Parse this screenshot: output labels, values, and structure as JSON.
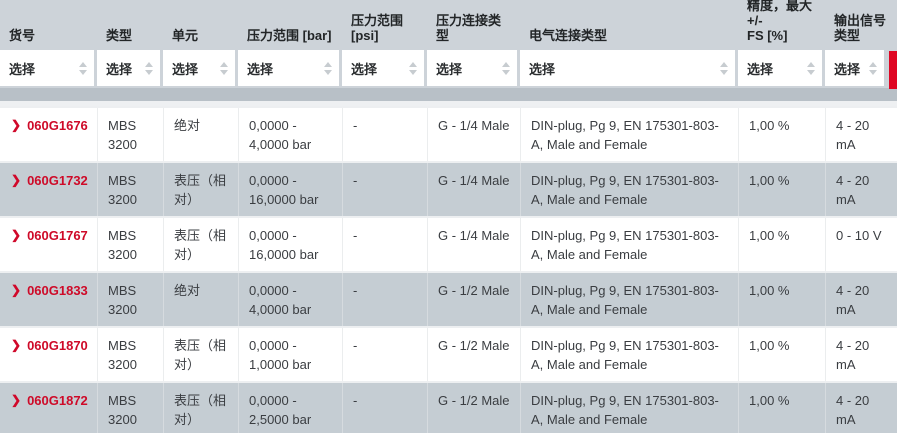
{
  "header": {
    "filter_placeholder": "选择",
    "columns": [
      {
        "id": "item",
        "label": "货号"
      },
      {
        "id": "type",
        "label": "类型"
      },
      {
        "id": "unit",
        "label": "单元"
      },
      {
        "id": "range_bar",
        "label": "压力范围 [bar]"
      },
      {
        "id": "range_psi",
        "label": "压力范围\n[psi]"
      },
      {
        "id": "pressure_connection",
        "label": "压力连接类型"
      },
      {
        "id": "electrical_connection",
        "label": "电气连接类型"
      },
      {
        "id": "accuracy",
        "label": "精度，最大 +/-\nFS [%]"
      },
      {
        "id": "output_signal",
        "label": "输出信号\n类型"
      }
    ]
  },
  "rows": [
    {
      "item": "060G1676",
      "type": "MBS 3200",
      "unit": "绝对",
      "range_bar": "0,0000 - 4,0000 bar",
      "range_psi": "-",
      "pressure_connection": "G - 1/4 Male",
      "electrical_connection": "DIN-plug, Pg 9, EN 175301-803-A, Male and Female",
      "accuracy": "1,00 %",
      "output_signal": "4 - 20 mA"
    },
    {
      "item": "060G1732",
      "type": "MBS 3200",
      "unit": "表压（相对）",
      "range_bar": "0,0000 - 16,0000 bar",
      "range_psi": "-",
      "pressure_connection": "G - 1/4 Male",
      "electrical_connection": "DIN-plug, Pg 9, EN 175301-803-A, Male and Female",
      "accuracy": "1,00 %",
      "output_signal": "4 - 20 mA"
    },
    {
      "item": "060G1767",
      "type": "MBS 3200",
      "unit": "表压（相对）",
      "range_bar": "0,0000 - 16,0000 bar",
      "range_psi": "-",
      "pressure_connection": "G - 1/4 Male",
      "electrical_connection": "DIN-plug, Pg 9, EN 175301-803-A, Male and Female",
      "accuracy": "1,00 %",
      "output_signal": "0 - 10 V"
    },
    {
      "item": "060G1833",
      "type": "MBS 3200",
      "unit": "绝对",
      "range_bar": "0,0000 - 4,0000 bar",
      "range_psi": "-",
      "pressure_connection": "G - 1/2 Male",
      "electrical_connection": "DIN-plug, Pg 9, EN 175301-803-A, Male and Female",
      "accuracy": "1,00 %",
      "output_signal": "4 - 20 mA"
    },
    {
      "item": "060G1870",
      "type": "MBS 3200",
      "unit": "表压（相对）",
      "range_bar": "0,0000 - 1,0000 bar",
      "range_psi": "-",
      "pressure_connection": "G - 1/2 Male",
      "electrical_connection": "DIN-plug, Pg 9, EN 175301-803-A, Male and Female",
      "accuracy": "1,00 %",
      "output_signal": "4 - 20 mA"
    },
    {
      "item": "060G1872",
      "type": "MBS 3200",
      "unit": "表压（相对）",
      "range_bar": "0,0000 - 2,5000 bar",
      "range_psi": "-",
      "pressure_connection": "G - 1/2 Male",
      "electrical_connection": "DIN-plug, Pg 9, EN 175301-803-A, Male and Female",
      "accuracy": "1,00 %",
      "output_signal": "4 - 20 mA"
    }
  ],
  "icons": {
    "row_marker": "❯",
    "sort_indicator": "sort-up-down-arrows"
  },
  "colors": {
    "accent_red": "#df0623",
    "item_link_red": "#ce0a28",
    "header_bg": "#cdd3d9",
    "row_alt_bg": "#c5cdd3",
    "row_bg": "#ffffff"
  }
}
